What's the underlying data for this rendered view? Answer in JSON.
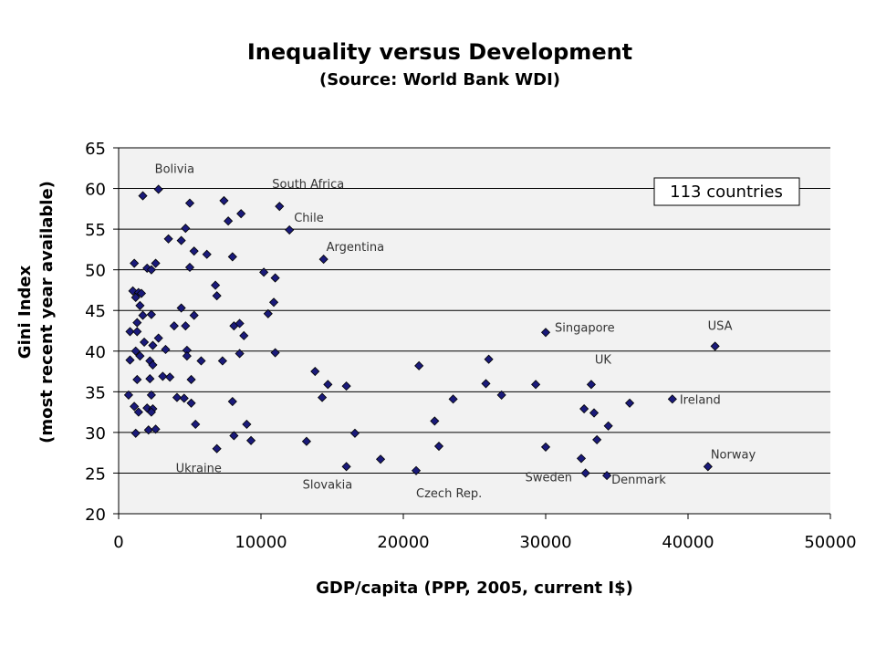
{
  "chart_data": {
    "type": "scatter",
    "title": "Inequality versus Development",
    "subtitle": "(Source: World Bank WDI)",
    "xlabel": "GDP/capita (PPP, 2005, current I$)",
    "ylabel_line1": "Gini Index",
    "ylabel_line2": "(most recent year available)",
    "xlim": [
      0,
      50000
    ],
    "ylim": [
      20,
      65
    ],
    "xticks": [
      "0",
      "10000",
      "20000",
      "30000",
      "40000",
      "50000"
    ],
    "yticks": [
      "20",
      "25",
      "30",
      "35",
      "40",
      "45",
      "50",
      "55",
      "60",
      "65"
    ],
    "grid": "horizontal",
    "marker_color": "#1a1a7a",
    "count_label": "113 countries",
    "annotations": [
      {
        "text": "Bolivia",
        "x": 2800,
        "y": 59.9
      },
      {
        "text": "South Africa",
        "x": 11300,
        "y": 57.8
      },
      {
        "text": "Chile",
        "x": 12000,
        "y": 54.9
      },
      {
        "text": "Argentina",
        "x": 14400,
        "y": 51.3
      },
      {
        "text": "Singapore",
        "x": 30000,
        "y": 42.3
      },
      {
        "text": "USA",
        "x": 41900,
        "y": 40.6
      },
      {
        "text": "UK",
        "x": 33200,
        "y": 35.9
      },
      {
        "text": "Ireland",
        "x": 38900,
        "y": 34.1
      },
      {
        "text": "Norway",
        "x": 41400,
        "y": 25.8
      },
      {
        "text": "Ukraine",
        "x": 6900,
        "y": 28.0
      },
      {
        "text": "Slovakia",
        "x": 16000,
        "y": 25.8
      },
      {
        "text": "Czech Rep.",
        "x": 20900,
        "y": 25.3
      },
      {
        "text": "Sweden",
        "x": 32800,
        "y": 25.0
      },
      {
        "text": "Denmark",
        "x": 34300,
        "y": 24.7
      }
    ],
    "points": [
      [
        2800,
        59.9
      ],
      [
        1700,
        59.1
      ],
      [
        5000,
        58.2
      ],
      [
        7400,
        58.5
      ],
      [
        8600,
        56.9
      ],
      [
        7700,
        56.0
      ],
      [
        4700,
        55.1
      ],
      [
        3500,
        53.8
      ],
      [
        4400,
        53.6
      ],
      [
        5300,
        52.3
      ],
      [
        6200,
        51.9
      ],
      [
        8000,
        51.6
      ],
      [
        1100,
        50.8
      ],
      [
        2600,
        50.8
      ],
      [
        2000,
        50.2
      ],
      [
        2300,
        50.0
      ],
      [
        5000,
        50.3
      ],
      [
        10200,
        49.7
      ],
      [
        11000,
        49.0
      ],
      [
        6800,
        48.1
      ],
      [
        1000,
        47.4
      ],
      [
        1400,
        47.2
      ],
      [
        1600,
        47.1
      ],
      [
        1200,
        46.6
      ],
      [
        6900,
        46.8
      ],
      [
        1500,
        45.6
      ],
      [
        10900,
        46.0
      ],
      [
        4400,
        45.3
      ],
      [
        1700,
        44.4
      ],
      [
        2300,
        44.5
      ],
      [
        5300,
        44.4
      ],
      [
        10500,
        44.6
      ],
      [
        1300,
        43.5
      ],
      [
        3900,
        43.1
      ],
      [
        4700,
        43.1
      ],
      [
        8100,
        43.1
      ],
      [
        8500,
        43.4
      ],
      [
        800,
        42.4
      ],
      [
        1300,
        42.4
      ],
      [
        8800,
        41.9
      ],
      [
        2800,
        41.6
      ],
      [
        1800,
        41.1
      ],
      [
        2400,
        40.7
      ],
      [
        3300,
        40.2
      ],
      [
        1200,
        40.0
      ],
      [
        4800,
        40.1
      ],
      [
        1500,
        39.4
      ],
      [
        4800,
        39.4
      ],
      [
        8500,
        39.7
      ],
      [
        11000,
        39.8
      ],
      [
        800,
        38.9
      ],
      [
        2200,
        38.8
      ],
      [
        2400,
        38.3
      ],
      [
        5800,
        38.8
      ],
      [
        7300,
        38.8
      ],
      [
        1300,
        36.5
      ],
      [
        2200,
        36.6
      ],
      [
        3100,
        36.9
      ],
      [
        3600,
        36.8
      ],
      [
        5100,
        36.5
      ],
      [
        700,
        34.6
      ],
      [
        2300,
        34.6
      ],
      [
        4100,
        34.3
      ],
      [
        4600,
        34.2
      ],
      [
        5100,
        33.6
      ],
      [
        8000,
        33.8
      ],
      [
        1100,
        33.2
      ],
      [
        2000,
        33.0
      ],
      [
        2400,
        32.9
      ],
      [
        1400,
        32.5
      ],
      [
        2300,
        32.5
      ],
      [
        5400,
        31.0
      ],
      [
        9000,
        31.0
      ],
      [
        2100,
        30.3
      ],
      [
        2600,
        30.4
      ],
      [
        1200,
        29.9
      ],
      [
        8100,
        29.6
      ],
      [
        9300,
        29.0
      ],
      [
        6900,
        28.0
      ],
      [
        13200,
        28.9
      ],
      [
        16000,
        25.8
      ],
      [
        16600,
        29.9
      ],
      [
        18400,
        26.7
      ],
      [
        20900,
        25.3
      ],
      [
        13800,
        37.5
      ],
      [
        14300,
        34.3
      ],
      [
        14700,
        35.9
      ],
      [
        16000,
        35.7
      ],
      [
        21100,
        38.2
      ],
      [
        22200,
        31.4
      ],
      [
        22500,
        28.3
      ],
      [
        23500,
        34.1
      ],
      [
        25800,
        36.0
      ],
      [
        26000,
        39.0
      ],
      [
        26900,
        34.6
      ],
      [
        29300,
        35.9
      ],
      [
        30000,
        28.2
      ],
      [
        30000,
        42.3
      ],
      [
        32500,
        26.8
      ],
      [
        32700,
        32.9
      ],
      [
        32800,
        25.0
      ],
      [
        33200,
        35.9
      ],
      [
        33400,
        32.4
      ],
      [
        33600,
        29.1
      ],
      [
        34300,
        24.7
      ],
      [
        34400,
        30.8
      ],
      [
        35900,
        33.6
      ],
      [
        38900,
        34.1
      ],
      [
        41400,
        25.8
      ],
      [
        41900,
        40.6
      ],
      [
        11300,
        57.8
      ],
      [
        12000,
        54.9
      ],
      [
        14400,
        51.3
      ]
    ]
  }
}
